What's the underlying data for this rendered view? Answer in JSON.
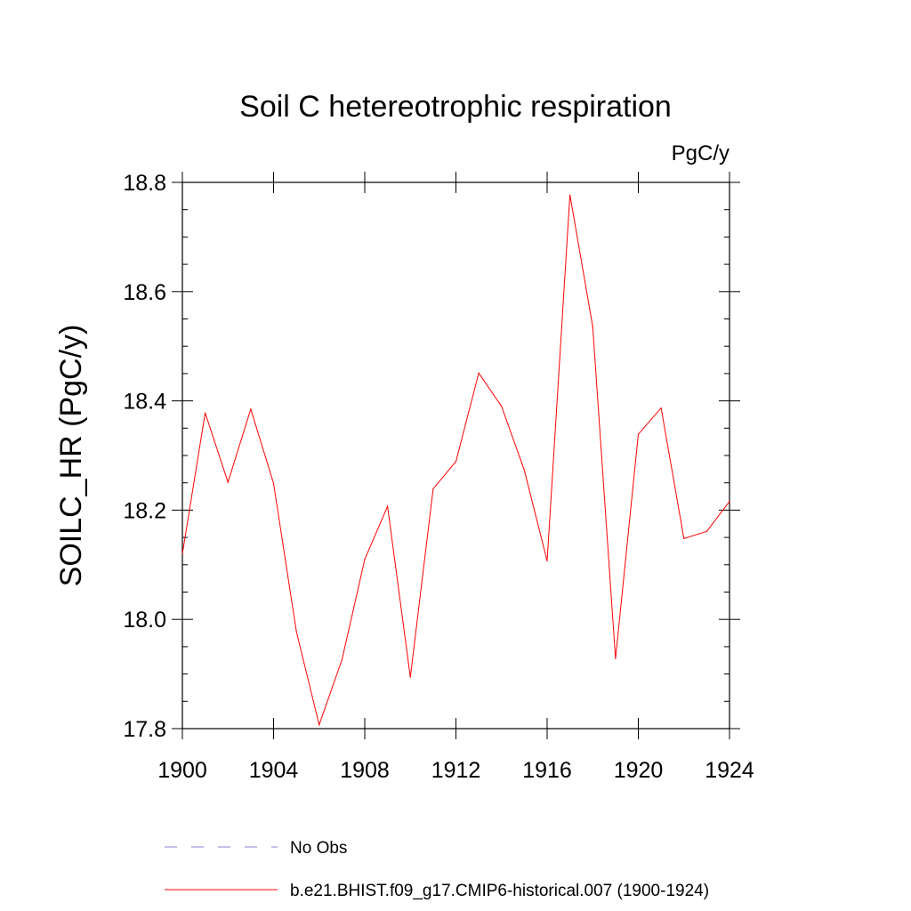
{
  "chart_data": {
    "type": "line",
    "title": "Soil C hetereotrophic respiration",
    "units": "PgC/y",
    "ylabel": "SOILC_HR  (PgC/y)",
    "xlabel": "",
    "xlim": [
      1900,
      1924
    ],
    "ylim": [
      17.8,
      18.8
    ],
    "x_ticks": [
      1900,
      1904,
      1908,
      1912,
      1916,
      1920,
      1924
    ],
    "x_tick_labels": [
      "1900",
      "1904",
      "1908",
      "1912",
      "1916",
      "1920",
      "1924"
    ],
    "y_ticks": [
      17.8,
      18.0,
      18.2,
      18.4,
      18.6,
      18.8
    ],
    "y_tick_labels": [
      "17.8",
      "18.0",
      "18.2",
      "18.4",
      "18.6",
      "18.8"
    ],
    "grid": false,
    "legend_position": "bottom",
    "x": [
      1900,
      1901,
      1902,
      1903,
      1904,
      1905,
      1906,
      1907,
      1908,
      1909,
      1910,
      1911,
      1912,
      1913,
      1914,
      1915,
      1916,
      1917,
      1918,
      1919,
      1920,
      1921,
      1922,
      1923,
      1924
    ],
    "series": [
      {
        "name": "b.e21.BHIST.f09_g17.CMIP6-historical.007 (1900-1924)",
        "color": "#ff0000",
        "style": "solid",
        "values": [
          18.12,
          18.378,
          18.251,
          18.385,
          18.249,
          17.978,
          17.807,
          17.926,
          18.11,
          18.207,
          17.894,
          18.239,
          18.289,
          18.451,
          18.39,
          18.273,
          18.107,
          18.777,
          18.536,
          17.928,
          18.339,
          18.387,
          18.148,
          18.161,
          18.216
        ]
      }
    ],
    "legend": [
      {
        "label": "No Obs",
        "color": "#8a7fd0",
        "style": "dashed"
      },
      {
        "label": "b.e21.BHIST.f09_g17.CMIP6-historical.007 (1900-1924)",
        "color": "#ff0000",
        "style": "solid"
      }
    ]
  }
}
